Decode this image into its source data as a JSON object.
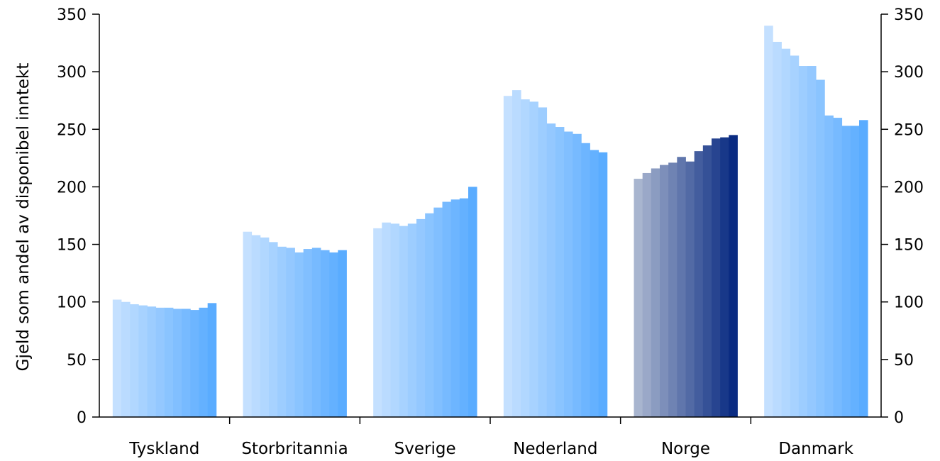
{
  "chart_data": {
    "type": "bar",
    "ylabel": "Gjeld som andel av disponibel inntekt",
    "ylim": [
      0,
      350
    ],
    "yticks": [
      0,
      50,
      100,
      150,
      200,
      250,
      300,
      350
    ],
    "secondary_y_axis": true,
    "grid": false,
    "categories": [
      "Tyskland",
      "Storbritannia",
      "Sverige",
      "Nederland",
      "Norge",
      "Danmark"
    ],
    "groups": [
      {
        "category": "Tyskland",
        "values": [
          102,
          100,
          98,
          97,
          96,
          95,
          95,
          94,
          94,
          93,
          95,
          99
        ]
      },
      {
        "category": "Storbritannia",
        "values": [
          161,
          158,
          156,
          152,
          148,
          147,
          143,
          146,
          147,
          145,
          143,
          145
        ]
      },
      {
        "category": "Sverige",
        "values": [
          164,
          169,
          168,
          166,
          168,
          172,
          177,
          182,
          187,
          189,
          190,
          200
        ]
      },
      {
        "category": "Nederland",
        "values": [
          279,
          284,
          276,
          274,
          269,
          255,
          252,
          248,
          246,
          238,
          232,
          230
        ]
      },
      {
        "category": "Norge",
        "values": [
          207,
          212,
          216,
          219,
          221,
          226,
          222,
          231,
          236,
          242,
          243,
          245
        ]
      },
      {
        "category": "Danmark",
        "values": [
          340,
          326,
          320,
          314,
          305,
          305,
          293,
          262,
          260,
          253,
          253,
          258
        ]
      }
    ],
    "colors": {
      "others": [
        "#c4e0ff",
        "#5aacff"
      ],
      "highlight": [
        "#a8b5cf",
        "#0a2b82"
      ],
      "highlight_category": "Norge"
    }
  }
}
